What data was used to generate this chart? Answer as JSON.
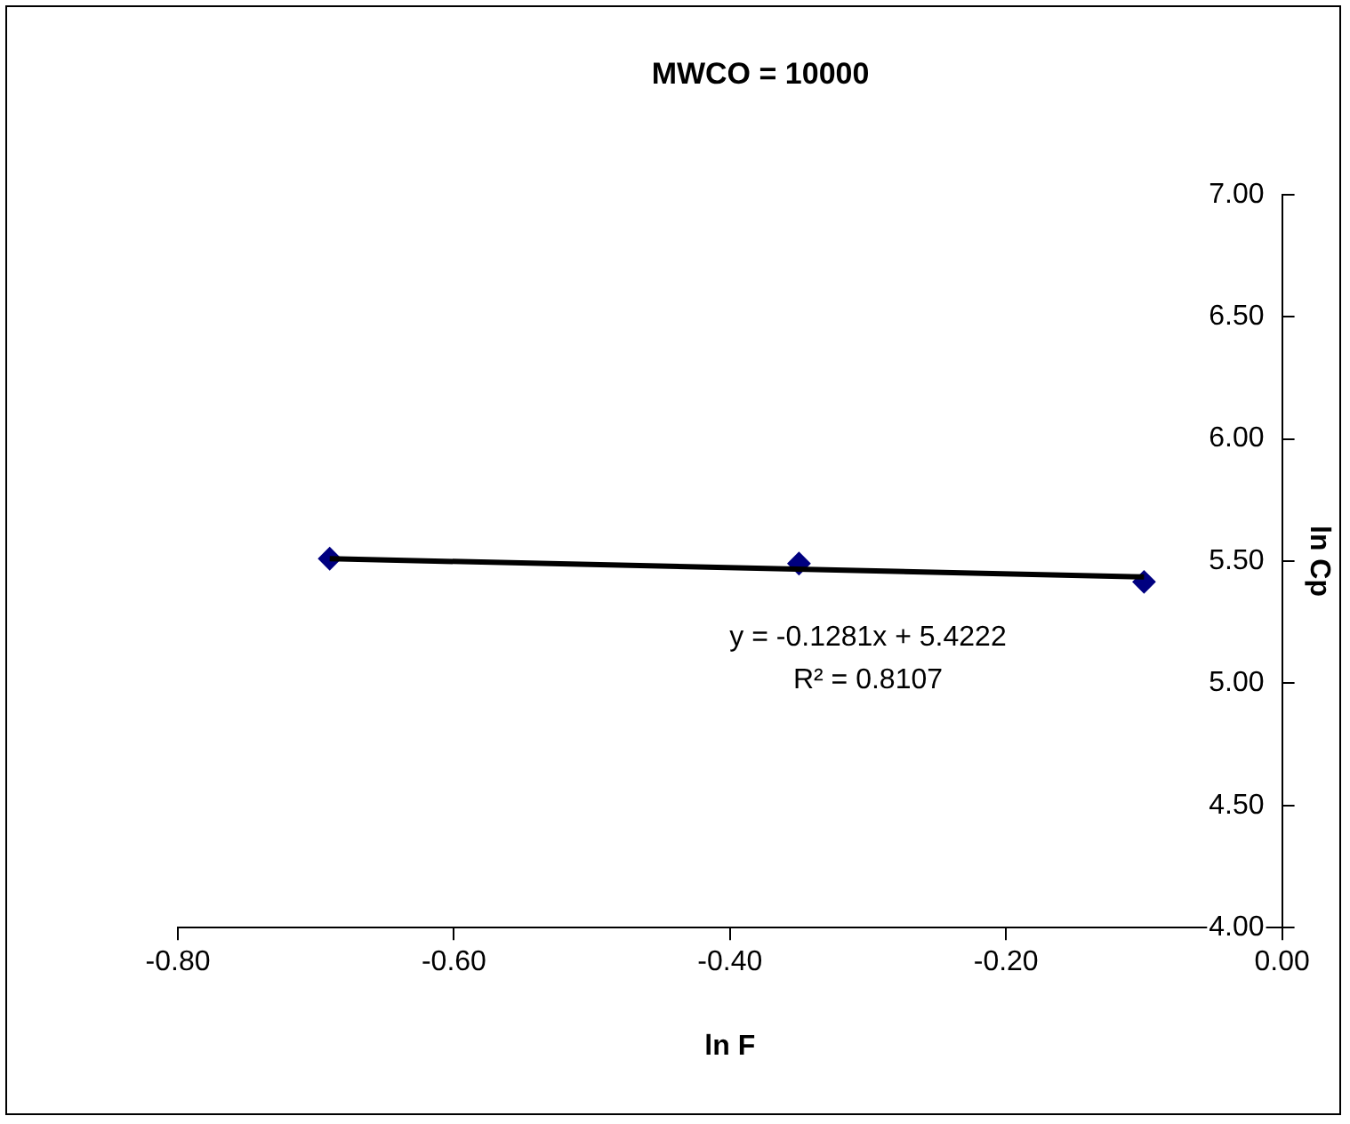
{
  "chart_data": {
    "type": "scatter",
    "title": "MWCO = 10000",
    "xlabel": "ln F",
    "ylabel": "ln Cp",
    "x": [
      -0.69,
      -0.35,
      -0.1
    ],
    "series": [
      {
        "type": "scatter",
        "color": "#000080",
        "marker": "diamond",
        "values": [
          5.51,
          5.49,
          5.415
        ]
      },
      {
        "type": "line",
        "color": "#000000",
        "marker": "none",
        "line_style": "solid",
        "x": [
          -0.69,
          -0.1
        ],
        "values": [
          5.51,
          5.435
        ]
      }
    ],
    "xlim": [
      -0.8,
      0
    ],
    "xticks": [
      {
        "value": -0.8,
        "label": "-0.80"
      },
      {
        "value": -0.6,
        "label": "-0.60"
      },
      {
        "value": -0.4,
        "label": "-0.40"
      },
      {
        "value": -0.2,
        "label": "-0.20"
      },
      {
        "value": 0,
        "label": "0.00"
      }
    ],
    "ylim": [
      4,
      7
    ],
    "yticks": [
      {
        "value": 4,
        "label": "4.00"
      },
      {
        "value": 4.5,
        "label": "4.50"
      },
      {
        "value": 5,
        "label": "5.00"
      },
      {
        "value": 5.5,
        "label": "5.50"
      },
      {
        "value": 6,
        "label": "6.00"
      },
      {
        "value": 6.5,
        "label": "6.50"
      },
      {
        "value": 7,
        "label": "7.00"
      }
    ],
    "annotations": [
      "y = -0.1281x + 5.4222",
      "R² = 0.8107"
    ],
    "grid": false,
    "legend": false
  }
}
